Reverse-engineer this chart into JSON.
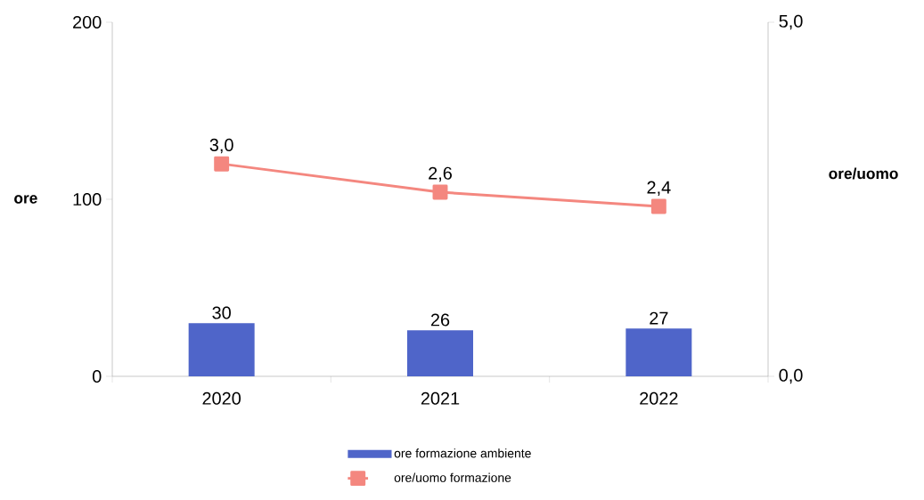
{
  "chart_data": {
    "type": "bar",
    "categories": [
      "2020",
      "2021",
      "2022"
    ],
    "ylabel": "ore",
    "y2label": "ore/uomo",
    "ylim": [
      0,
      200
    ],
    "yticks": [
      0,
      100,
      200
    ],
    "y2lim": [
      0,
      5
    ],
    "y2ticks": [
      {
        "value": 0,
        "label": "0,0"
      },
      {
        "value": 5,
        "label": "5,0"
      }
    ],
    "series": [
      {
        "name": "ore formazione ambiente",
        "color": "#4f65c9",
        "values": [
          30,
          26,
          27
        ],
        "value_labels": [
          "30",
          "26",
          "27"
        ]
      },
      {
        "name": "ore/uomo formazione",
        "type": "line",
        "axis": "y2",
        "color": "#f4877f",
        "marker": "square",
        "values": [
          3.0,
          2.6,
          2.4
        ],
        "value_labels": [
          "3,0",
          "2,6",
          "2,4"
        ]
      }
    ],
    "legend": "bottom"
  }
}
